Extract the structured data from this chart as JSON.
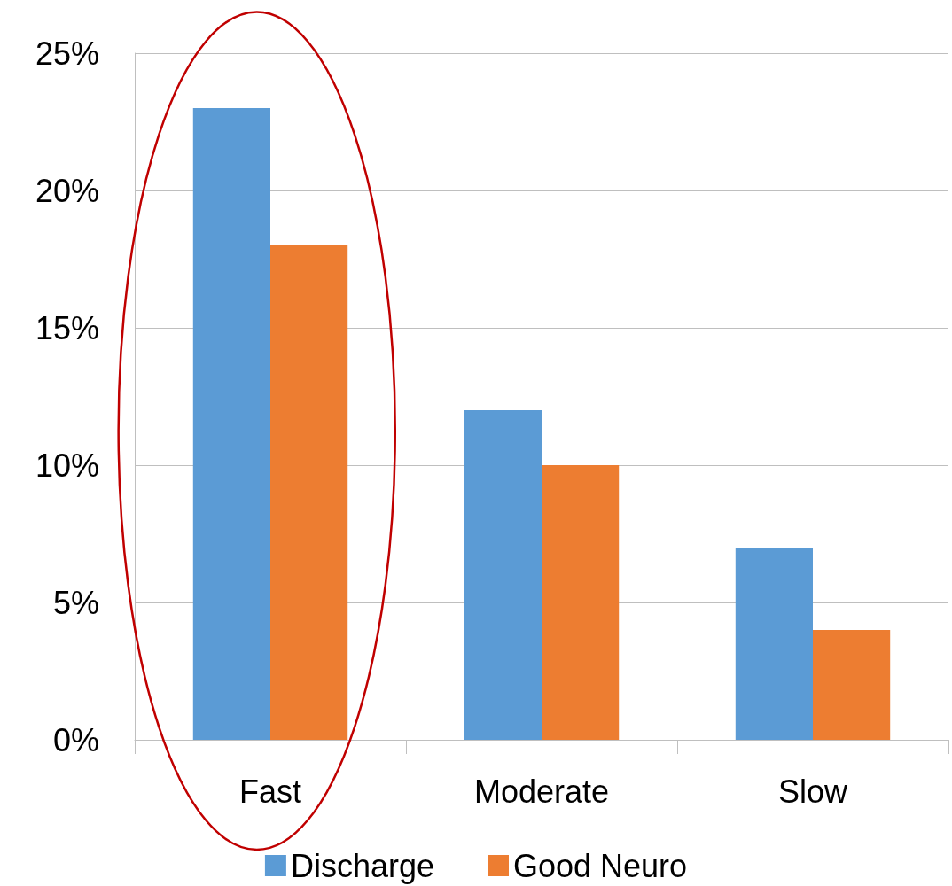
{
  "chart_data": {
    "type": "bar",
    "categories": [
      "Fast",
      "Moderate",
      "Slow"
    ],
    "series": [
      {
        "name": "Discharge",
        "color": "#5b9bd5",
        "values": [
          23,
          12,
          7
        ]
      },
      {
        "name": "Good Neuro",
        "color": "#ed7d31",
        "values": [
          18,
          10,
          4
        ]
      }
    ],
    "ylim": [
      0,
      25
    ],
    "yticks": [
      {
        "value": 0,
        "label": "0%"
      },
      {
        "value": 5,
        "label": "5%"
      },
      {
        "value": 10,
        "label": "10%"
      },
      {
        "value": 15,
        "label": "15%"
      },
      {
        "value": 20,
        "label": "20%"
      },
      {
        "value": 25,
        "label": "25%"
      }
    ],
    "grid": "y",
    "legend": "bottom"
  }
}
